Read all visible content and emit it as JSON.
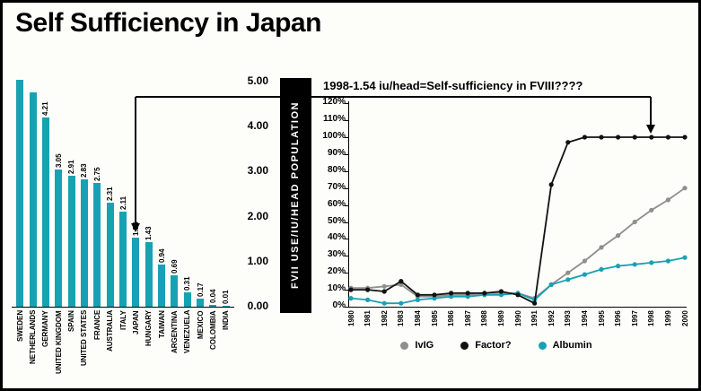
{
  "slide": {
    "title": "Self Sufficiency in Japan"
  },
  "banner": {
    "text": "FVII USE/IU/HEAD POPULATION"
  },
  "colors": {
    "bar_teal": "#17a2b3",
    "line_gray": "#8f8f8f",
    "line_black": "#111111",
    "banner_bg": "#000000"
  },
  "chart_data": [
    {
      "type": "bar",
      "name": "fviii-use-per-head-by-country",
      "ylabel": "FVII USE/IU/HEAD POPULATION",
      "ylim": [
        0,
        5
      ],
      "y_ticks": [
        "5.00",
        "4.00",
        "3.00",
        "2.00",
        "1.00",
        "0.00"
      ],
      "bar_color": "#17a2b3",
      "categories": [
        "SWEDEN",
        "NETHERLANDS",
        "GERMANY",
        "UNITED KINGDOM",
        "SPAIN",
        "UNITED STATES",
        "FRANCE",
        "AUSTRALIA",
        "ITALY",
        "JAPAN",
        "HUNGARY",
        "TAIWAN",
        "ARGENTINA",
        "VENEZUELA",
        "MEXICO",
        "COLOMBIA",
        "INDIA"
      ],
      "values": [
        5.04,
        4.77,
        4.21,
        3.05,
        2.91,
        2.83,
        2.75,
        2.31,
        2.11,
        1.54,
        1.43,
        0.94,
        0.69,
        0.31,
        0.17,
        0.04,
        0.01
      ],
      "data_labels": [
        "",
        "",
        "4.21",
        "3.05",
        "2.91",
        "2.83",
        "2.75",
        "2.31",
        "2.11",
        "1.54",
        "1.43",
        "0.94",
        "0.69",
        "0.31",
        "0.17",
        "0.04",
        "0.01"
      ]
    },
    {
      "type": "line",
      "title": "1998-1.54 iu/head=Self-sufficiency in FVIII????",
      "ylim": [
        0,
        120
      ],
      "y_ticks": [
        "120%",
        "110%",
        "100%",
        "90%",
        "80%",
        "70%",
        "60%",
        "50%",
        "40%",
        "30%",
        "20%",
        "10%",
        "0%"
      ],
      "x": [
        1980,
        1981,
        1982,
        1983,
        1984,
        1985,
        1986,
        1987,
        1988,
        1989,
        1990,
        1991,
        1992,
        1993,
        1994,
        1995,
        1996,
        1997,
        1998,
        1999,
        2000
      ],
      "legend_position": "bottom",
      "series": [
        {
          "name": "IvIG",
          "color": "#8f8f8f",
          "values": [
            11,
            11,
            12,
            13,
            6,
            6,
            7,
            7,
            8,
            8,
            8,
            5,
            13,
            20,
            27,
            35,
            42,
            50,
            57,
            63,
            70
          ]
        },
        {
          "name": "Factor?",
          "color": "#111111",
          "values": [
            10,
            10,
            9,
            15,
            7,
            7,
            8,
            8,
            8,
            9,
            7,
            2,
            72,
            97,
            100,
            100,
            100,
            100,
            100,
            100,
            100
          ]
        },
        {
          "name": "Albumin",
          "color": "#17a2b3",
          "values": [
            5,
            4,
            2,
            2,
            4,
            5,
            6,
            6,
            7,
            7,
            8,
            4,
            13,
            16,
            19,
            22,
            24,
            25,
            26,
            27,
            29
          ]
        }
      ]
    }
  ]
}
